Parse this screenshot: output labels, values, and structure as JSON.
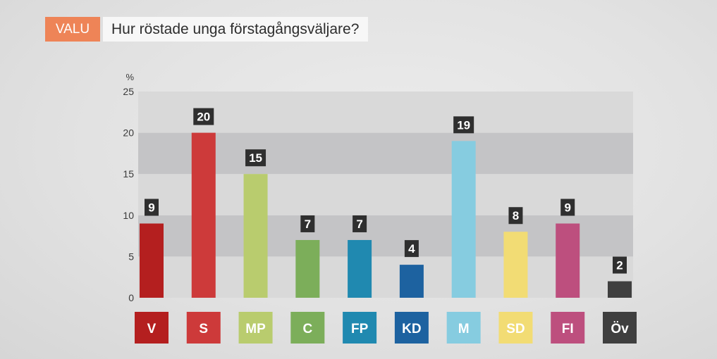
{
  "header": {
    "badge": "VALU",
    "title": "Hur röstade unga förstagångsväljare?"
  },
  "chart_data": {
    "type": "bar",
    "title": "Hur röstade unga förstagångsväljare?",
    "ylabel": "%",
    "ylim": [
      0,
      25
    ],
    "yticks": [
      0,
      5,
      10,
      15,
      20,
      25
    ],
    "grid": "alternating horizontal bands",
    "categories": [
      "V",
      "S",
      "MP",
      "C",
      "FP",
      "KD",
      "M",
      "SD",
      "FI",
      "Öv"
    ],
    "values": [
      9,
      20,
      15,
      7,
      7,
      4,
      19,
      8,
      9,
      2
    ],
    "colors": [
      "#b41f1f",
      "#cd3a3a",
      "#b9cc6e",
      "#7cae5a",
      "#2089b0",
      "#1d62a0",
      "#86cce0",
      "#f2dc74",
      "#bd4f7e",
      "#3f3f3f"
    ],
    "label_box_color": "#2f2f2f"
  }
}
